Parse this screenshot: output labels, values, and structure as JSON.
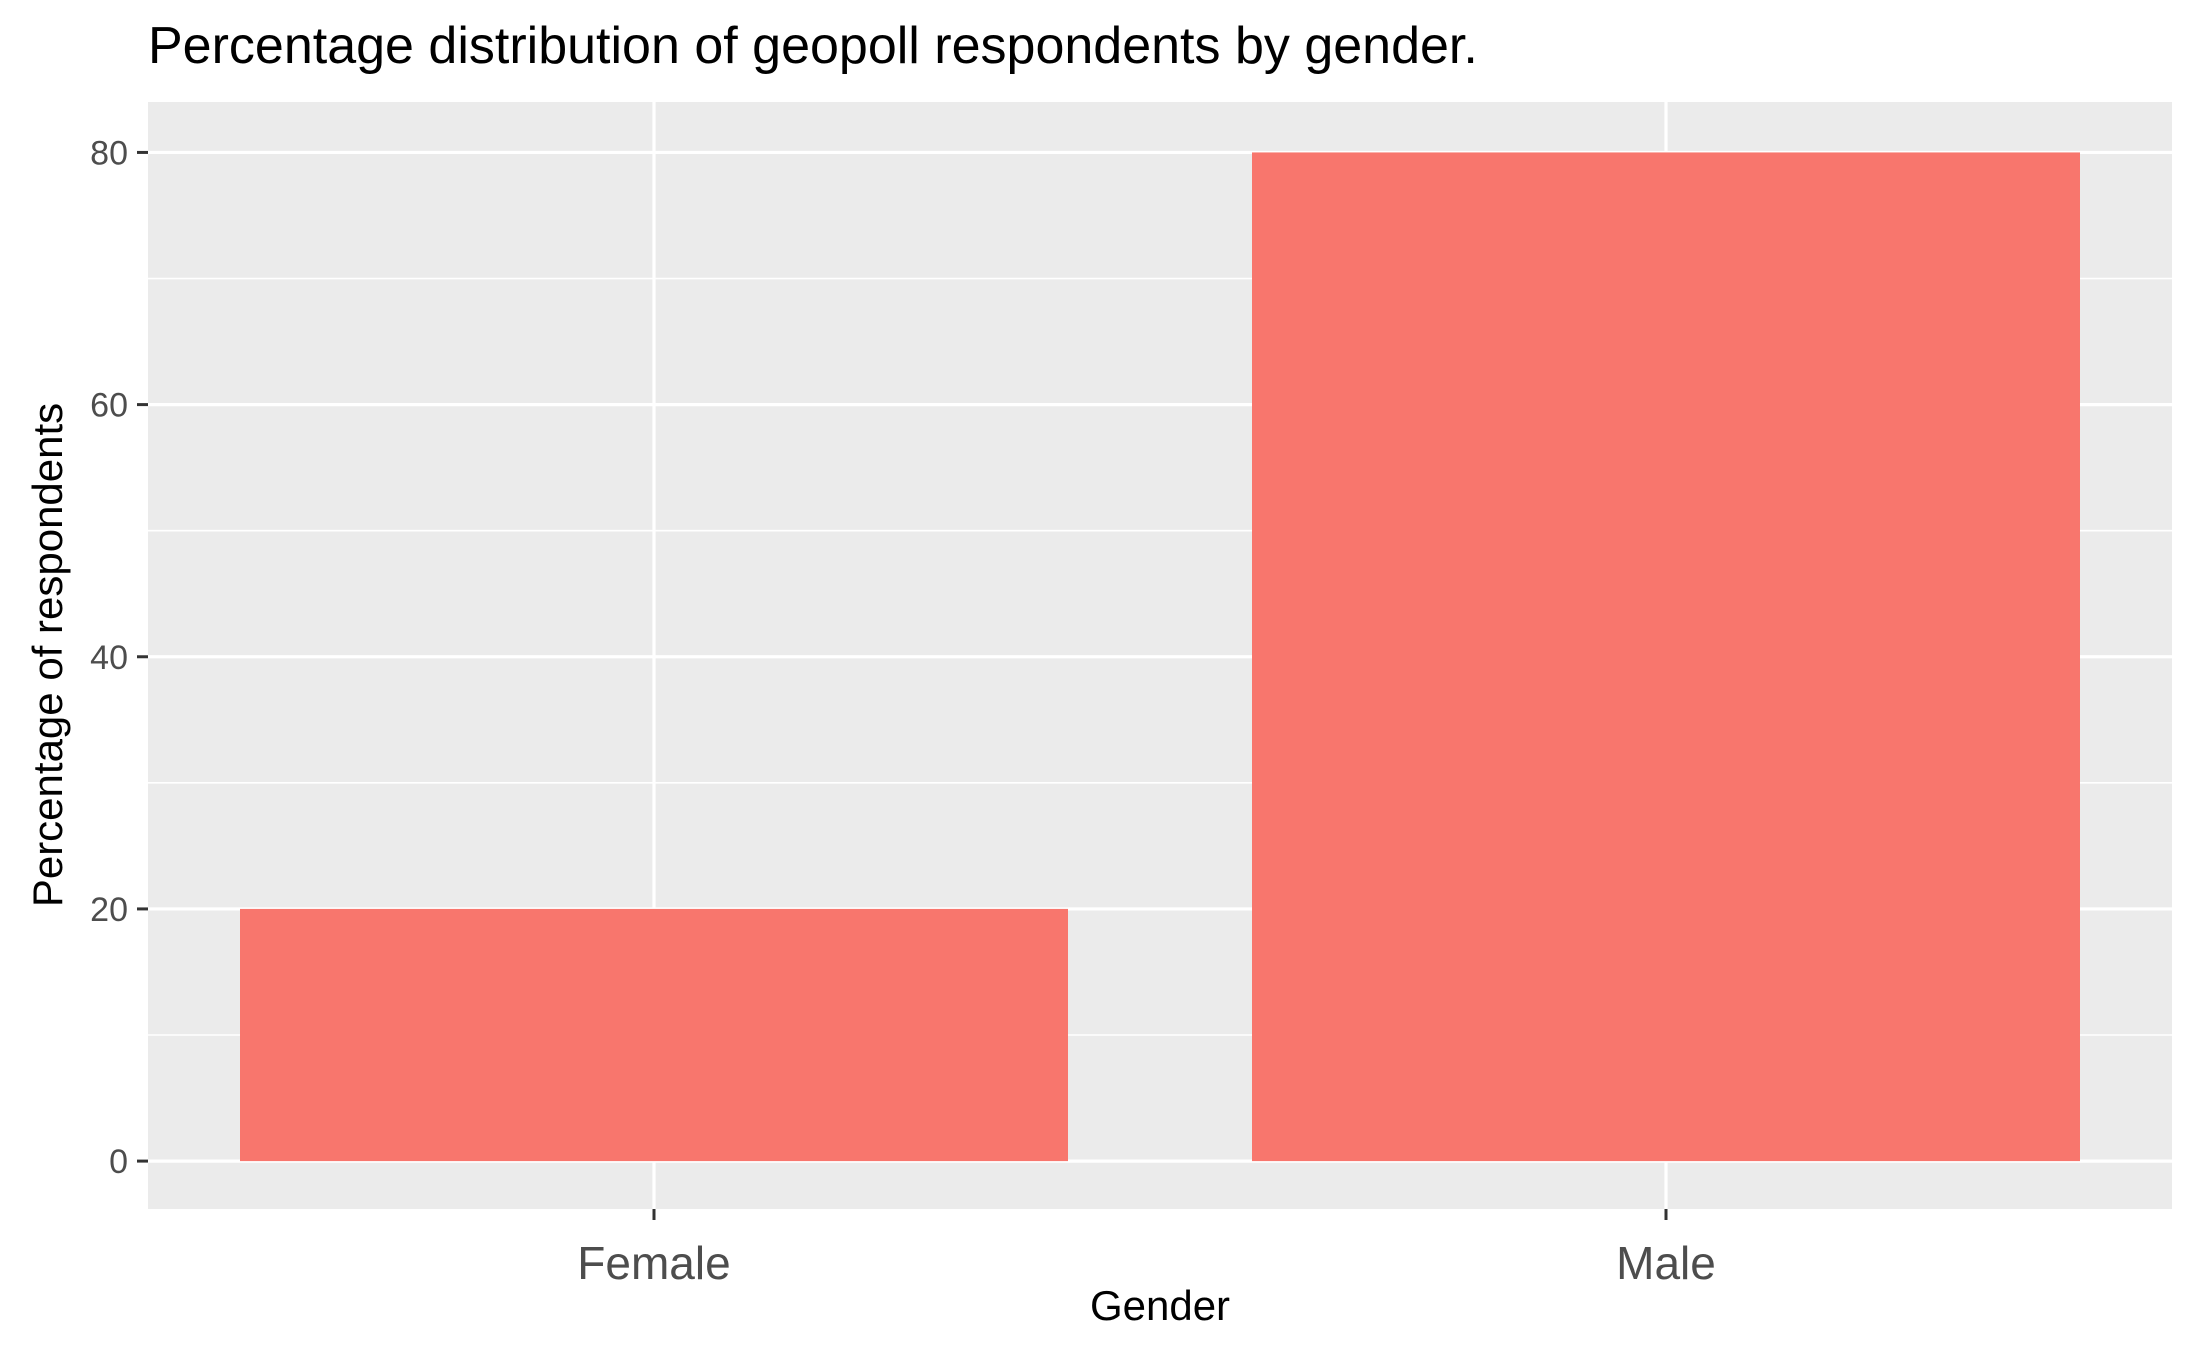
{
  "chart_data": {
    "type": "bar",
    "title": "Percentage distribution of geopoll respondents by gender.",
    "xlabel": "Gender",
    "ylabel": "Percentage of respondents",
    "categories": [
      "Female",
      "Male"
    ],
    "values": [
      20,
      80
    ],
    "ylim": [
      -3.8,
      84
    ],
    "yticks": [
      0,
      20,
      40,
      60,
      80
    ],
    "ytick_labels": [
      "0",
      "20",
      "40",
      "60",
      "80"
    ],
    "grid": true,
    "legend": "none",
    "colors": {
      "bar": "#F8766D",
      "panel": "#EBEBEB",
      "grid": "#FFFFFF",
      "tick": "#333333"
    }
  }
}
